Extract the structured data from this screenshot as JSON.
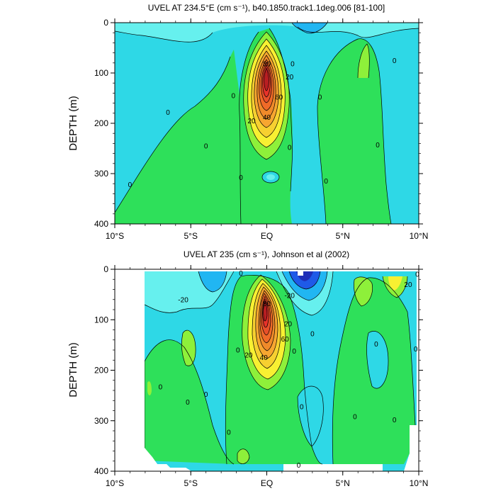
{
  "colors": {
    "background": "#ffffff",
    "cyan_light": "#66f0ee",
    "cyan": "#2ed8e6",
    "sky": "#21b6f2",
    "blue": "#1f5ae8",
    "navy": "#1f2fb8",
    "green": "#2ee05a",
    "lime": "#8ef03a",
    "yellow": "#f8f032",
    "orange": "#f7a630",
    "deep_orange": "#f06a28",
    "red": "#e8322a",
    "dark_red": "#b81e22",
    "grey_land": "#ffffff"
  },
  "chart_data": [
    {
      "type": "contour",
      "title": "UVEL AT 234.5°E (cm s⁻¹), b40.1850.track1.1deg.006 [81-100]",
      "ylabel": "DEPTH (m)",
      "xlim": [
        -10,
        10
      ],
      "ylim": [
        0,
        400
      ],
      "y_reversed": true,
      "x_ticks": [
        {
          "value": -10,
          "label": "10°S"
        },
        {
          "value": -5,
          "label": "5°S"
        },
        {
          "value": 0,
          "label": "EQ"
        },
        {
          "value": 5,
          "label": "5°N"
        },
        {
          "value": 10,
          "label": "10°N"
        }
      ],
      "y_ticks": [
        0,
        100,
        200,
        300,
        400
      ],
      "contour_interval": 10,
      "core": {
        "lat": 0,
        "depth": 110,
        "max_speed": 100
      },
      "contour_labels": [
        {
          "text": "40",
          "lat": 0.0,
          "depth": 188
        },
        {
          "text": "20",
          "lat": -1.0,
          "depth": 195
        },
        {
          "text": "20",
          "lat": 1.5,
          "depth": 108
        },
        {
          "text": "60",
          "lat": 0.8,
          "depth": 148
        },
        {
          "text": "80",
          "lat": 0.0,
          "depth": 82
        },
        {
          "text": "0",
          "lat": -6.5,
          "depth": 178
        },
        {
          "text": "0",
          "lat": -4.0,
          "depth": 245
        },
        {
          "text": "0",
          "lat": -9.0,
          "depth": 322
        },
        {
          "text": "0",
          "lat": -2.2,
          "depth": 145
        },
        {
          "text": "0",
          "lat": 1.7,
          "depth": 82
        },
        {
          "text": "0",
          "lat": 3.5,
          "depth": 148
        },
        {
          "text": "0",
          "lat": 1.5,
          "depth": 248
        },
        {
          "text": "0",
          "lat": 3.9,
          "depth": 315
        },
        {
          "text": "0",
          "lat": -1.7,
          "depth": 308
        },
        {
          "text": "0",
          "lat": 7.3,
          "depth": 243
        },
        {
          "text": "0",
          "lat": 8.4,
          "depth": 75
        }
      ]
    },
    {
      "type": "contour",
      "title": "UVEL AT 235 (cm s⁻¹), Johnson et al (2002)",
      "ylabel": "DEPTH (m)",
      "xlim": [
        -10,
        10
      ],
      "ylim": [
        0,
        400
      ],
      "y_reversed": true,
      "x_ticks": [
        {
          "value": -10,
          "label": "10°S"
        },
        {
          "value": -5,
          "label": "5°S"
        },
        {
          "value": 0,
          "label": "EQ"
        },
        {
          "value": 5,
          "label": "5°N"
        },
        {
          "value": 10,
          "label": "10°N"
        }
      ],
      "y_ticks": [
        0,
        100,
        200,
        300,
        400
      ],
      "contour_interval": 10,
      "core": {
        "lat": -0.1,
        "depth": 95,
        "max_speed": 100
      },
      "contour_labels": [
        {
          "text": "40",
          "lat": -0.2,
          "depth": 175
        },
        {
          "text": "20",
          "lat": -1.2,
          "depth": 170
        },
        {
          "text": "20",
          "lat": 1.4,
          "depth": 108
        },
        {
          "text": "60",
          "lat": 1.2,
          "depth": 138
        },
        {
          "text": "80",
          "lat": 0.0,
          "depth": 68
        },
        {
          "text": "-20",
          "lat": -5.5,
          "depth": 60
        },
        {
          "text": "-20",
          "lat": 1.5,
          "depth": 52
        },
        {
          "text": "20",
          "lat": 9.3,
          "depth": 30
        },
        {
          "text": "0",
          "lat": -1.7,
          "depth": 8
        },
        {
          "text": "0",
          "lat": 9.9,
          "depth": 10
        },
        {
          "text": "0",
          "lat": 1.8,
          "depth": 162
        },
        {
          "text": "0",
          "lat": 3.0,
          "depth": 128
        },
        {
          "text": "0",
          "lat": -1.9,
          "depth": 160
        },
        {
          "text": "0",
          "lat": 7.2,
          "depth": 148
        },
        {
          "text": "0",
          "lat": 9.8,
          "depth": 158
        },
        {
          "text": "0",
          "lat": -7.0,
          "depth": 233
        },
        {
          "text": "0",
          "lat": -5.2,
          "depth": 263
        },
        {
          "text": "0",
          "lat": -4.0,
          "depth": 248
        },
        {
          "text": "0",
          "lat": 2.3,
          "depth": 272
        },
        {
          "text": "0",
          "lat": 5.8,
          "depth": 292
        },
        {
          "text": "0",
          "lat": 8.4,
          "depth": 298
        },
        {
          "text": "0",
          "lat": -2.5,
          "depth": 323
        },
        {
          "text": "0",
          "lat": 2.1,
          "depth": 388
        }
      ],
      "data_coverage": {
        "lat_min": -8,
        "lat_max": 10
      }
    }
  ]
}
